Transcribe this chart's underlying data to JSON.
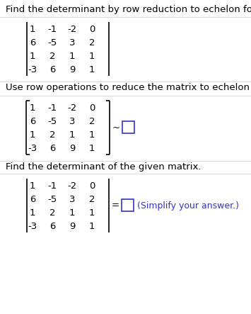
{
  "bg_color": "#ffffff",
  "text_color": "#000000",
  "blue_color": "#3333cc",
  "gray_line": "#cccccc",
  "title1": "Find the determinant by row reduction to echelon form.",
  "title2": "Use row operations to reduce the matrix to echelon form.",
  "title3": "Find the determinant of the given matrix.",
  "matrix_rows": [
    [
      "1",
      "-1",
      "-2",
      "0"
    ],
    [
      "6",
      "-5",
      "3",
      "2"
    ],
    [
      "1",
      "2",
      "1",
      "1"
    ],
    [
      "-3",
      "6",
      "9",
      "1"
    ]
  ],
  "simplify_text": "(Simplify your answer.)",
  "font_size_title": 9.5,
  "font_size_matrix": 9.5,
  "dpi": 100,
  "fig_w": 3.55,
  "fig_h": 4.43
}
